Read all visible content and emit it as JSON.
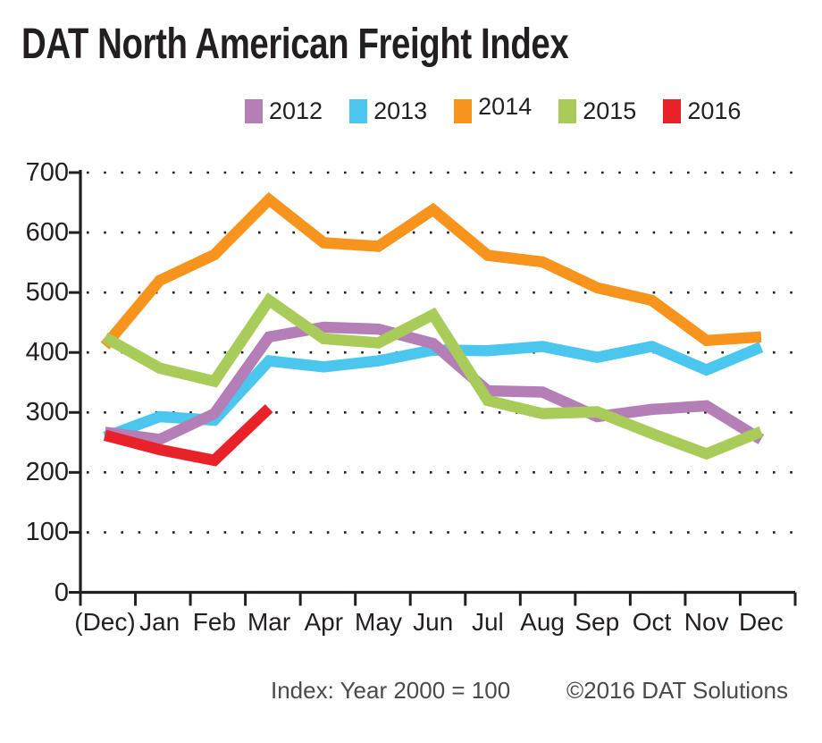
{
  "title": "DAT North American Freight Index",
  "footer": {
    "note": "Index: Year 2000 = 100",
    "copyright": "©2016 DAT Solutions"
  },
  "colors": {
    "axis": "#231f20",
    "grid_dots": "#231f20",
    "text": "#231f20",
    "footer_text": "#4a4a4c",
    "series_2012": "#b47eb6",
    "series_2013": "#4ac6ef",
    "series_2014": "#f7941e",
    "series_2015": "#a9cb5a",
    "series_2016": "#e92128"
  },
  "chart_data": {
    "type": "line",
    "title": "DAT North American Freight Index",
    "categories": [
      "(Dec)",
      "Jan",
      "Feb",
      "Mar",
      "Apr",
      "May",
      "Jun",
      "Jul",
      "Aug",
      "Sep",
      "Oct",
      "Nov",
      "Dec"
    ],
    "series": [
      {
        "name": "2012",
        "color": "#b47eb6",
        "values": [
          267,
          255,
          298,
          426,
          442,
          439,
          415,
          336,
          334,
          293,
          305,
          311,
          255
        ]
      },
      {
        "name": "2013",
        "color": "#4ac6ef",
        "values": [
          259,
          293,
          287,
          386,
          376,
          386,
          404,
          403,
          410,
          392,
          410,
          371,
          409
        ]
      },
      {
        "name": "2014",
        "color": "#f7941e",
        "values": [
          411,
          520,
          563,
          655,
          583,
          577,
          638,
          562,
          551,
          508,
          487,
          420,
          426
        ]
      },
      {
        "name": "2015",
        "color": "#a9cb5a",
        "values": [
          425,
          374,
          352,
          487,
          423,
          416,
          463,
          320,
          298,
          301,
          265,
          231,
          268
        ]
      },
      {
        "name": "2016",
        "color": "#e92128",
        "values": [
          262,
          238,
          220,
          307
        ]
      }
    ],
    "ylabel": "",
    "xlabel": "",
    "ylim": [
      0,
      700
    ],
    "yticks": [
      0,
      100,
      200,
      300,
      400,
      500,
      600,
      700
    ],
    "grid": "horizontal-dotted",
    "legend_position": "top",
    "note": "Index: Year 2000 = 100"
  }
}
